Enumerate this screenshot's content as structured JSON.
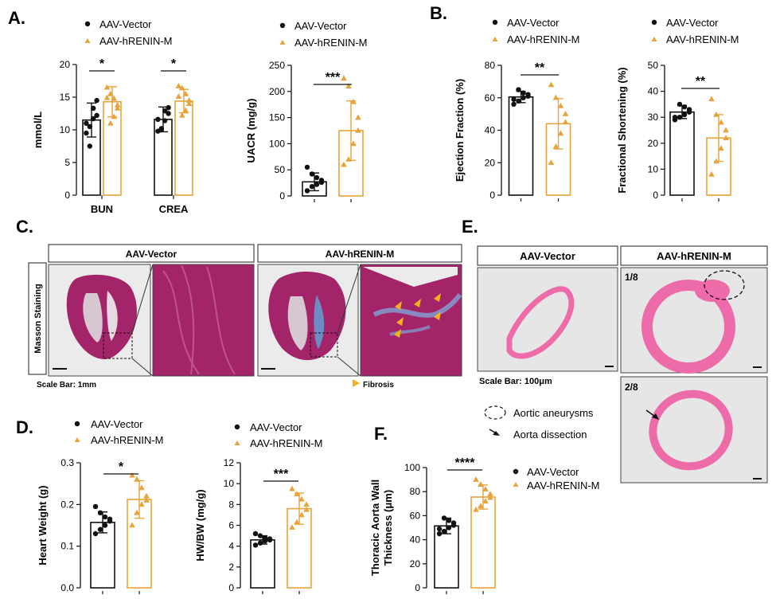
{
  "colors": {
    "vector": "#111111",
    "renin": "#E8A33A",
    "masson": "#A4246A",
    "he": "#EE6BA9",
    "panel_bg": "#E6E6E6"
  },
  "legend": {
    "vector": "AAV-Vector",
    "renin": "AAV-hRENIN-M"
  },
  "panels": {
    "A": "A.",
    "B": "B.",
    "C": "C.",
    "D": "D.",
    "E": "E.",
    "F": "F."
  },
  "chart_data": [
    {
      "id": "A1",
      "type": "bar",
      "categories": [
        "BUN",
        "CREA"
      ],
      "ylabel": "mmol/L",
      "ylim": [
        0,
        20
      ],
      "yticks": [
        0,
        5,
        10,
        15,
        20
      ],
      "series": [
        {
          "name": "AAV-Vector",
          "means": [
            11.5,
            11.6
          ],
          "sd": [
            2.6,
            1.9
          ],
          "points": [
            [
              9.5,
              10.5,
              11.7,
              12.2,
              14.5,
              13.3,
              7.5,
              11.0
            ],
            [
              9.8,
              10.2,
              11.4,
              12.5,
              13.4,
              12.9,
              10.0,
              11.6
            ]
          ]
        },
        {
          "name": "AAV-hRENIN-M",
          "means": [
            14.3,
            14.4
          ],
          "sd": [
            2.3,
            1.8
          ],
          "points": [
            [
              16.5,
              15.5,
              14.8,
              13.8,
              13.3,
              12.0,
              11.0,
              14.9
            ],
            [
              16.7,
              16.4,
              15.5,
              14.5,
              14.0,
              13.0,
              12.2,
              15.1
            ]
          ]
        }
      ],
      "significance": [
        {
          "groups": [
            "BUN"
          ],
          "label": "*"
        },
        {
          "groups": [
            "CREA"
          ],
          "label": "*"
        }
      ]
    },
    {
      "id": "A2",
      "type": "bar",
      "categories": [
        ""
      ],
      "ylabel": "UACR (mg/g)",
      "ylim": [
        0,
        250
      ],
      "yticks": [
        0,
        50,
        100,
        150,
        200,
        250
      ],
      "series": [
        {
          "name": "AAV-Vector",
          "means": [
            27
          ],
          "sd": [
            17
          ],
          "points": [
            [
              10,
              18,
              22,
              26,
              30,
              35,
              42,
              55
            ]
          ]
        },
        {
          "name": "AAV-hRENIN-M",
          "means": [
            125
          ],
          "sd": [
            57
          ],
          "points": [
            [
              60,
              70,
              100,
              125,
              150,
              180,
              210,
              225
            ]
          ]
        }
      ],
      "significance": [
        {
          "label": "***"
        }
      ]
    },
    {
      "id": "B1",
      "type": "bar",
      "categories": [
        ""
      ],
      "ylabel": "Ejection Fraction (%)",
      "ylim": [
        0,
        80
      ],
      "yticks": [
        0,
        20,
        40,
        60,
        80
      ],
      "series": [
        {
          "name": "AAV-Vector",
          "means": [
            60.5
          ],
          "sd": [
            3.5
          ],
          "points": [
            [
              56,
              58,
              60,
              61,
              62,
              63,
              65,
              59
            ]
          ]
        },
        {
          "name": "AAV-hRENIN-M",
          "means": [
            44
          ],
          "sd": [
            15.5
          ],
          "points": [
            [
              20,
              30,
              38,
              45,
              50,
              55,
              60,
              68
            ]
          ]
        }
      ],
      "significance": [
        {
          "label": "**"
        }
      ]
    },
    {
      "id": "B2",
      "type": "bar",
      "categories": [
        ""
      ],
      "ylabel": "Fractional Shortening (%)",
      "ylim": [
        0,
        50
      ],
      "yticks": [
        0,
        10,
        20,
        30,
        40,
        50
      ],
      "series": [
        {
          "name": "AAV-Vector",
          "means": [
            32
          ],
          "sd": [
            2.5
          ],
          "points": [
            [
              29,
              30,
              31,
              32,
              33,
              34,
              35,
              30
            ]
          ]
        },
        {
          "name": "AAV-hRENIN-M",
          "means": [
            22
          ],
          "sd": [
            9
          ],
          "points": [
            [
              8,
              13,
              18,
              22,
              25,
              28,
              31,
              37
            ]
          ]
        }
      ],
      "significance": [
        {
          "label": "**"
        }
      ]
    },
    {
      "id": "D1",
      "type": "bar",
      "categories": [
        ""
      ],
      "ylabel": "Heart Weight (g)",
      "ylim": [
        0,
        0.3
      ],
      "yticks": [
        0.0,
        0.1,
        0.2,
        0.3
      ],
      "series": [
        {
          "name": "AAV-Vector",
          "means": [
            0.157
          ],
          "sd": [
            0.025
          ],
          "points": [
            [
              0.13,
              0.14,
              0.15,
              0.16,
              0.165,
              0.17,
              0.18,
              0.195
            ]
          ]
        },
        {
          "name": "AAV-hRENIN-M",
          "means": [
            0.212
          ],
          "sd": [
            0.045
          ],
          "points": [
            [
              0.15,
              0.18,
              0.2,
              0.21,
              0.22,
              0.24,
              0.26,
              0.27
            ]
          ]
        }
      ],
      "significance": [
        {
          "label": "*"
        }
      ]
    },
    {
      "id": "D2",
      "type": "bar",
      "categories": [
        ""
      ],
      "ylabel": "HW/BW (mg/g)",
      "ylim": [
        0,
        12
      ],
      "yticks": [
        0,
        2,
        4,
        6,
        8,
        10,
        12
      ],
      "series": [
        {
          "name": "AAV-Vector",
          "means": [
            4.6
          ],
          "sd": [
            0.4
          ],
          "points": [
            [
              4.1,
              4.3,
              4.5,
              4.6,
              4.7,
              4.8,
              5.0,
              5.2
            ]
          ]
        },
        {
          "name": "AAV-hRENIN-M",
          "means": [
            7.6
          ],
          "sd": [
            1.5
          ],
          "points": [
            [
              5.8,
              6.3,
              7.0,
              7.5,
              8.0,
              8.5,
              9.0,
              9.5
            ]
          ]
        }
      ],
      "significance": [
        {
          "label": "***"
        }
      ]
    },
    {
      "id": "F1",
      "type": "bar",
      "categories": [
        ""
      ],
      "ylabel": "Thoracic Aorta Wall Thickness (μm)",
      "ylim": [
        0,
        100
      ],
      "yticks": [
        0,
        20,
        40,
        60,
        80,
        100
      ],
      "series": [
        {
          "name": "AAV-Vector",
          "means": [
            51.5
          ],
          "sd": [
            6.5
          ],
          "points": [
            [
              45,
              47,
              50,
              52,
              54,
              56,
              58,
              49
            ]
          ]
        },
        {
          "name": "AAV-hRENIN-M",
          "means": [
            75.5
          ],
          "sd": [
            10
          ],
          "points": [
            [
              65,
              68,
              72,
              75,
              78,
              82,
              86,
              90
            ]
          ]
        }
      ],
      "significance": [
        {
          "label": "****"
        }
      ]
    }
  ],
  "panel_c": {
    "stain_label": "Masson Staining",
    "headers": [
      "AAV-Vector",
      "AAV-hRENIN-M"
    ],
    "scale_bar": "Scale Bar: 1mm",
    "fibrosis_label": "Fibrosis"
  },
  "panel_e": {
    "headers": [
      "AAV-Vector",
      "AAV-hRENIN-M"
    ],
    "scale_bar": "Scale Bar: 100μm",
    "fractions": [
      "1/8",
      "2/8"
    ],
    "legend_aneurysm": "Aortic aneurysms",
    "legend_dissection": "Aorta dissection"
  }
}
